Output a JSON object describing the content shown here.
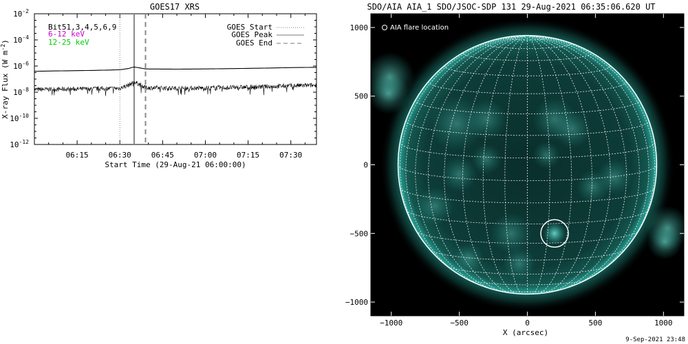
{
  "chart_data": [
    {
      "type": "line",
      "title": "GOES17 XRS",
      "xlabel": "Start Time (29-Aug-21 06:00:00)",
      "ylabel_main": "X-ray Flux (W m",
      "ylabel_sup": "-2",
      "ylabel_end": ")",
      "xlim": [
        "06:00",
        "07:39"
      ],
      "ylim": [
        1e-12,
        0.01
      ],
      "yscale": "log",
      "xticks": [
        {
          "t": "06:15",
          "label": "06:15"
        },
        {
          "t": "06:30",
          "label": "06:30"
        },
        {
          "t": "06:45",
          "label": "06:45"
        },
        {
          "t": "07:00",
          "label": "07:00"
        },
        {
          "t": "07:15",
          "label": "07:15"
        },
        {
          "t": "07:30",
          "label": "07:30"
        }
      ],
      "yticks": [
        {
          "exp": -12
        },
        {
          "exp": -10
        },
        {
          "exp": -8
        },
        {
          "exp": -6
        },
        {
          "exp": -4
        },
        {
          "exp": -2
        }
      ],
      "ytick_base": "10",
      "channel_labels": [
        {
          "text": "Bit51,3,4,5,6,9",
          "color": "#000000"
        },
        {
          "text": "6-12 keV",
          "color": "#cc00cc"
        },
        {
          "text": "12-25 keV",
          "color": "#00cc00"
        }
      ],
      "legend": [
        {
          "label": "GOES Start",
          "style": "dotted"
        },
        {
          "label": "GOES Peak",
          "style": "solid"
        },
        {
          "label": "GOES End",
          "style": "dashed"
        }
      ],
      "markers": {
        "start": "06:30",
        "peak": "06:35",
        "end": "06:39"
      },
      "series": [
        {
          "line": "long",
          "x": [
            "06:00",
            "06:10",
            "06:20",
            "06:30",
            "06:33",
            "06:35",
            "06:37",
            "06:39",
            "06:50",
            "07:00",
            "07:10",
            "07:20",
            "07:30",
            "07:39"
          ],
          "y": [
            4e-07,
            4.3e-07,
            4.6e-07,
            5.2e-07,
            6.5e-07,
            8.5e-07,
            7.2e-07,
            6e-07,
            5.8e-07,
            6e-07,
            6.4e-07,
            6.9e-07,
            7.6e-07,
            8e-07
          ]
        },
        {
          "line": "short",
          "x": [
            "06:00",
            "06:10",
            "06:20",
            "06:30",
            "06:33",
            "06:35",
            "06:37",
            "06:39",
            "06:50",
            "07:00",
            "07:10",
            "07:20",
            "07:30",
            "07:39"
          ],
          "y": [
            1.6e-08,
            1.7e-08,
            1.8e-08,
            2e-08,
            3.5e-08,
            6e-08,
            3.8e-08,
            2.2e-08,
            2e-08,
            2.1e-08,
            2.3e-08,
            2.6e-08,
            3.1e-08,
            3.4e-08
          ]
        }
      ]
    },
    {
      "type": "image",
      "title": "SDO/AIA AIA_1 SDO/JSOC-SDP 131 29-Aug-2021 06:35:06.620 UT",
      "xlabel": "X (arcsec)",
      "ylabel": "",
      "xlim": [
        -1150,
        1150
      ],
      "ylim": [
        -1100,
        1100
      ],
      "xticks": [
        -1000,
        -500,
        0,
        500,
        1000
      ],
      "yticks": [
        -1000,
        -500,
        0,
        500,
        1000
      ],
      "legend": [
        {
          "label": "AIA flare location",
          "marker": "circle"
        }
      ],
      "solar_radius_arcsec": 950,
      "flare_location": {
        "x": 200,
        "y": -500
      },
      "colors": {
        "disk": "#0a3a36",
        "limb": "#2fbfb0",
        "grid": "#ffffff",
        "background": "#000000"
      }
    }
  ],
  "footer": {
    "timestamp": "9-Sep-2021 23:48"
  }
}
